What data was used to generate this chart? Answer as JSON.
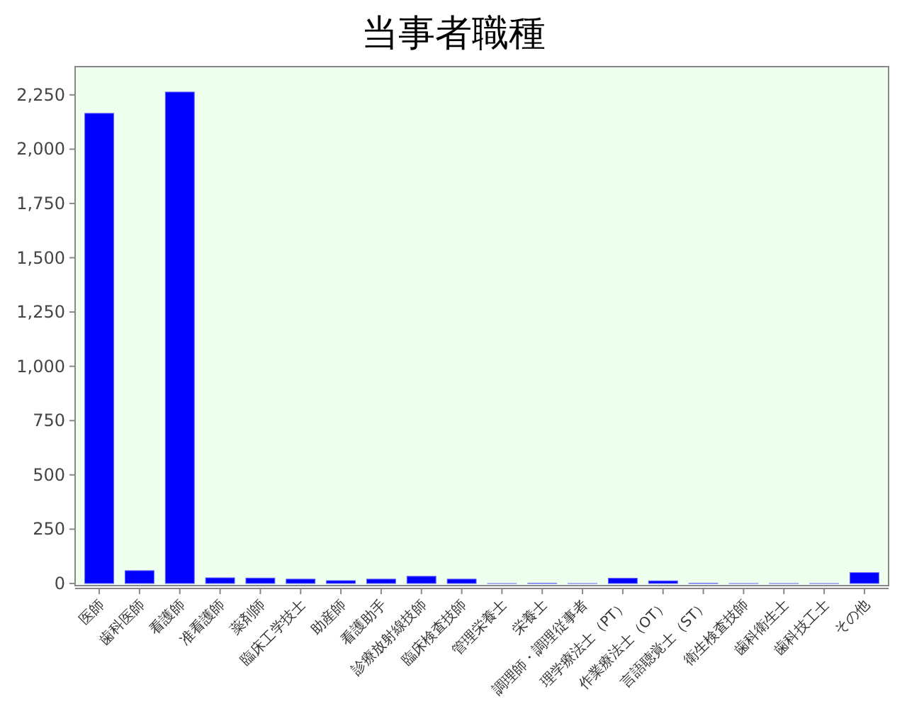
{
  "chart_data": {
    "type": "bar",
    "title": "当事者職種",
    "categories": [
      "医師",
      "歯科医師",
      "看護師",
      "准看護師",
      "薬剤師",
      "臨床工学技士",
      "助産師",
      "看護助手",
      "診療放射線技師",
      "臨床検査技師",
      "管理栄養士",
      "栄養士",
      "調理師・調理従事者",
      "理学療法士（PT）",
      "作業療法士（OT）",
      "言語聴覚士（ST）",
      "衛生検査技師",
      "歯科衛生士",
      "歯科技工士",
      "その他"
    ],
    "values": [
      2165,
      59,
      2263,
      26,
      25,
      20,
      13,
      20,
      33,
      20,
      0,
      1,
      0,
      24,
      12,
      1,
      0,
      0,
      0,
      50
    ],
    "color": "#0000ff",
    "ylim": [
      -10,
      2380
    ],
    "yticks": [
      {
        "value": 0,
        "label": "0"
      },
      {
        "value": 250,
        "label": "250"
      },
      {
        "value": 500,
        "label": "500"
      },
      {
        "value": 750,
        "label": "750"
      },
      {
        "value": 1000,
        "label": "1,000"
      },
      {
        "value": 1250,
        "label": "1,250"
      },
      {
        "value": 1500,
        "label": "1,500"
      },
      {
        "value": 1750,
        "label": "1,750"
      },
      {
        "value": 2000,
        "label": "2,000"
      },
      {
        "value": 2250,
        "label": "2,250"
      }
    ],
    "grid": false
  }
}
